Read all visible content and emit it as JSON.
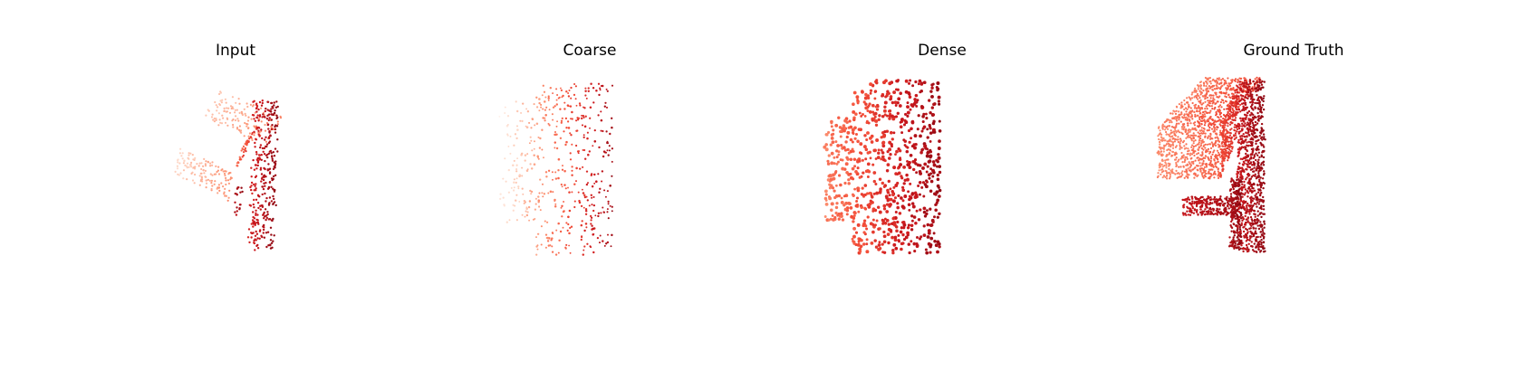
{
  "panels": [
    {
      "title": "Input",
      "style": "input"
    },
    {
      "title": "Coarse",
      "style": "coarse"
    },
    {
      "title": "Dense",
      "style": "dense"
    },
    {
      "title": "Ground Truth",
      "style": "gt"
    }
  ],
  "colors": {
    "colormap": "Reds",
    "light": "#fdd5c3",
    "mid": "#f44f39",
    "dark": "#8b0712"
  }
}
